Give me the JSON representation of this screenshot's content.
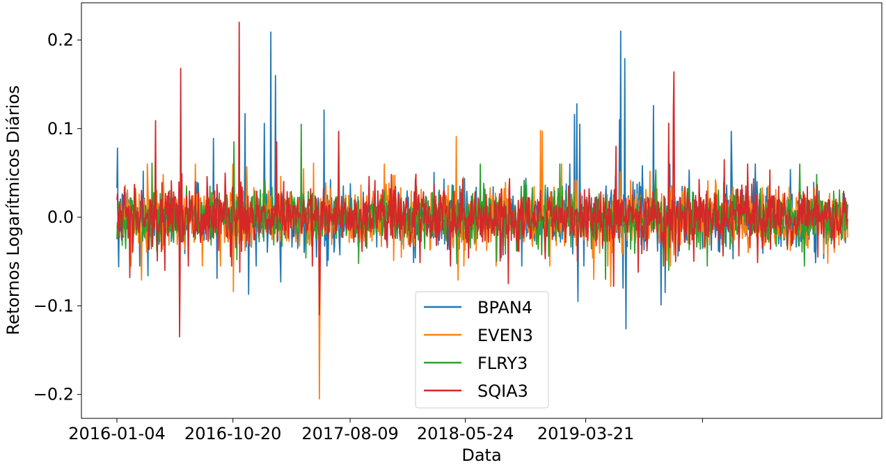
{
  "chart_data": {
    "type": "line",
    "title": "",
    "xlabel": "Data",
    "ylabel": "Retornos Logarítmicos Diários",
    "x_range": [
      "2016-01-04",
      "2021-01-04"
    ],
    "ylim": [
      -0.227,
      0.242
    ],
    "x_ticks": [
      {
        "date": "2016-01-04",
        "label": "2016-01-04"
      },
      {
        "date": "2016-10-20",
        "label": "2016-10-20"
      },
      {
        "date": "2017-08-09",
        "label": "2017-08-09"
      },
      {
        "date": "2018-05-24",
        "label": "2018-05-24"
      },
      {
        "date": "2019-03-21",
        "label": "2019-03-21"
      },
      {
        "date": "2020-01-07",
        "label": ""
      }
    ],
    "y_ticks": [
      {
        "value": 0.2,
        "label": "0.2"
      },
      {
        "value": 0.1,
        "label": "0.1"
      },
      {
        "value": 0.0,
        "label": "0.0"
      },
      {
        "value": -0.1,
        "label": "−0.1"
      },
      {
        "value": -0.2,
        "label": "−0.2"
      }
    ],
    "grid": false,
    "legend_position": "lower-center",
    "series": [
      {
        "name": "BPAN4",
        "color": "#1f77b4",
        "noise_scale": 0.016,
        "points": [
          {
            "x": "2016-01-04",
            "y": 0.033
          },
          {
            "x": "2016-01-05",
            "y": 0.078
          },
          {
            "x": "2016-01-08",
            "y": -0.056
          },
          {
            "x": "2016-03-10",
            "y": 0.052
          },
          {
            "x": "2016-03-22",
            "y": -0.066
          },
          {
            "x": "2016-09-02",
            "y": 0.089
          },
          {
            "x": "2016-09-10",
            "y": -0.069
          },
          {
            "x": "2016-11-20",
            "y": 0.117
          },
          {
            "x": "2016-11-28",
            "y": -0.087
          },
          {
            "x": "2017-01-06",
            "y": 0.106
          },
          {
            "x": "2017-01-23",
            "y": 0.209
          },
          {
            "x": "2017-02-03",
            "y": 0.16
          },
          {
            "x": "2017-02-17",
            "y": -0.073
          },
          {
            "x": "2017-06-05",
            "y": 0.121
          },
          {
            "x": "2017-06-12",
            "y": -0.055
          },
          {
            "x": "2019-02-21",
            "y": 0.116
          },
          {
            "x": "2019-02-27",
            "y": 0.128
          },
          {
            "x": "2019-03-01",
            "y": -0.095
          },
          {
            "x": "2019-03-06",
            "y": 0.105
          },
          {
            "x": "2019-06-13",
            "y": 0.11
          },
          {
            "x": "2019-06-17",
            "y": 0.21
          },
          {
            "x": "2019-06-22",
            "y": -0.08
          },
          {
            "x": "2019-06-27",
            "y": 0.179
          },
          {
            "x": "2019-06-30",
            "y": -0.126
          },
          {
            "x": "2019-09-06",
            "y": 0.126
          },
          {
            "x": "2019-09-25",
            "y": -0.099
          },
          {
            "x": "2019-10-05",
            "y": -0.085
          },
          {
            "x": "2020-03-19",
            "y": 0.097
          },
          {
            "x": "2020-03-24",
            "y": -0.047
          }
        ]
      },
      {
        "name": "EVEN3",
        "color": "#ff7f0e",
        "noise_scale": 0.018,
        "points": [
          {
            "x": "2016-03-05",
            "y": -0.071
          },
          {
            "x": "2016-10-21",
            "y": -0.084
          },
          {
            "x": "2017-05-10",
            "y": 0.061
          },
          {
            "x": "2017-05-24",
            "y": -0.205
          },
          {
            "x": "2017-05-26",
            "y": -0.098
          },
          {
            "x": "2017-07-12",
            "y": 0.096
          },
          {
            "x": "2018-05-02",
            "y": 0.091
          },
          {
            "x": "2018-05-06",
            "y": -0.071
          },
          {
            "x": "2018-11-28",
            "y": 0.098
          },
          {
            "x": "2018-12-03",
            "y": 0.097
          },
          {
            "x": "2019-04-10",
            "y": -0.07
          },
          {
            "x": "2019-05-22",
            "y": -0.078
          },
          {
            "x": "2020-03-01",
            "y": 0.056
          },
          {
            "x": "2020-05-01",
            "y": -0.04
          }
        ]
      },
      {
        "name": "FLRY3",
        "color": "#2ca02c",
        "noise_scale": 0.015,
        "points": [
          {
            "x": "2016-04-01",
            "y": 0.061
          },
          {
            "x": "2016-10-23",
            "y": 0.085
          },
          {
            "x": "2016-10-30",
            "y": -0.048
          },
          {
            "x": "2017-04-09",
            "y": 0.105
          },
          {
            "x": "2017-04-20",
            "y": -0.046
          },
          {
            "x": "2018-07-01",
            "y": 0.06
          },
          {
            "x": "2018-08-10",
            "y": -0.05
          },
          {
            "x": "2019-05-10",
            "y": -0.07
          },
          {
            "x": "2019-10-15",
            "y": -0.06
          }
        ]
      },
      {
        "name": "SQIA3",
        "color": "#d62728",
        "noise_scale": 0.017,
        "points": [
          {
            "x": "2016-02-05",
            "y": -0.068
          },
          {
            "x": "2016-04-10",
            "y": 0.109
          },
          {
            "x": "2016-05-03",
            "y": -0.06
          },
          {
            "x": "2016-06-09",
            "y": -0.135
          },
          {
            "x": "2016-06-11",
            "y": 0.168
          },
          {
            "x": "2016-06-14",
            "y": 0.049
          },
          {
            "x": "2016-11-04",
            "y": 0.22
          },
          {
            "x": "2016-11-06",
            "y": -0.062
          },
          {
            "x": "2017-02-06",
            "y": 0.085
          },
          {
            "x": "2017-05-24",
            "y": -0.11
          },
          {
            "x": "2017-05-25",
            "y": -0.07
          },
          {
            "x": "2017-07-12",
            "y": 0.097
          },
          {
            "x": "2018-09-08",
            "y": -0.075
          },
          {
            "x": "2019-05-30",
            "y": -0.078
          },
          {
            "x": "2019-06-05",
            "y": 0.08
          },
          {
            "x": "2019-07-30",
            "y": -0.062
          },
          {
            "x": "2019-10-15",
            "y": 0.106
          },
          {
            "x": "2019-10-26",
            "y": 0.12
          },
          {
            "x": "2019-10-28",
            "y": 0.164
          },
          {
            "x": "2019-11-01",
            "y": -0.05
          },
          {
            "x": "2020-03-01",
            "y": 0.065
          },
          {
            "x": "2020-05-07",
            "y": -0.02
          }
        ]
      }
    ]
  }
}
